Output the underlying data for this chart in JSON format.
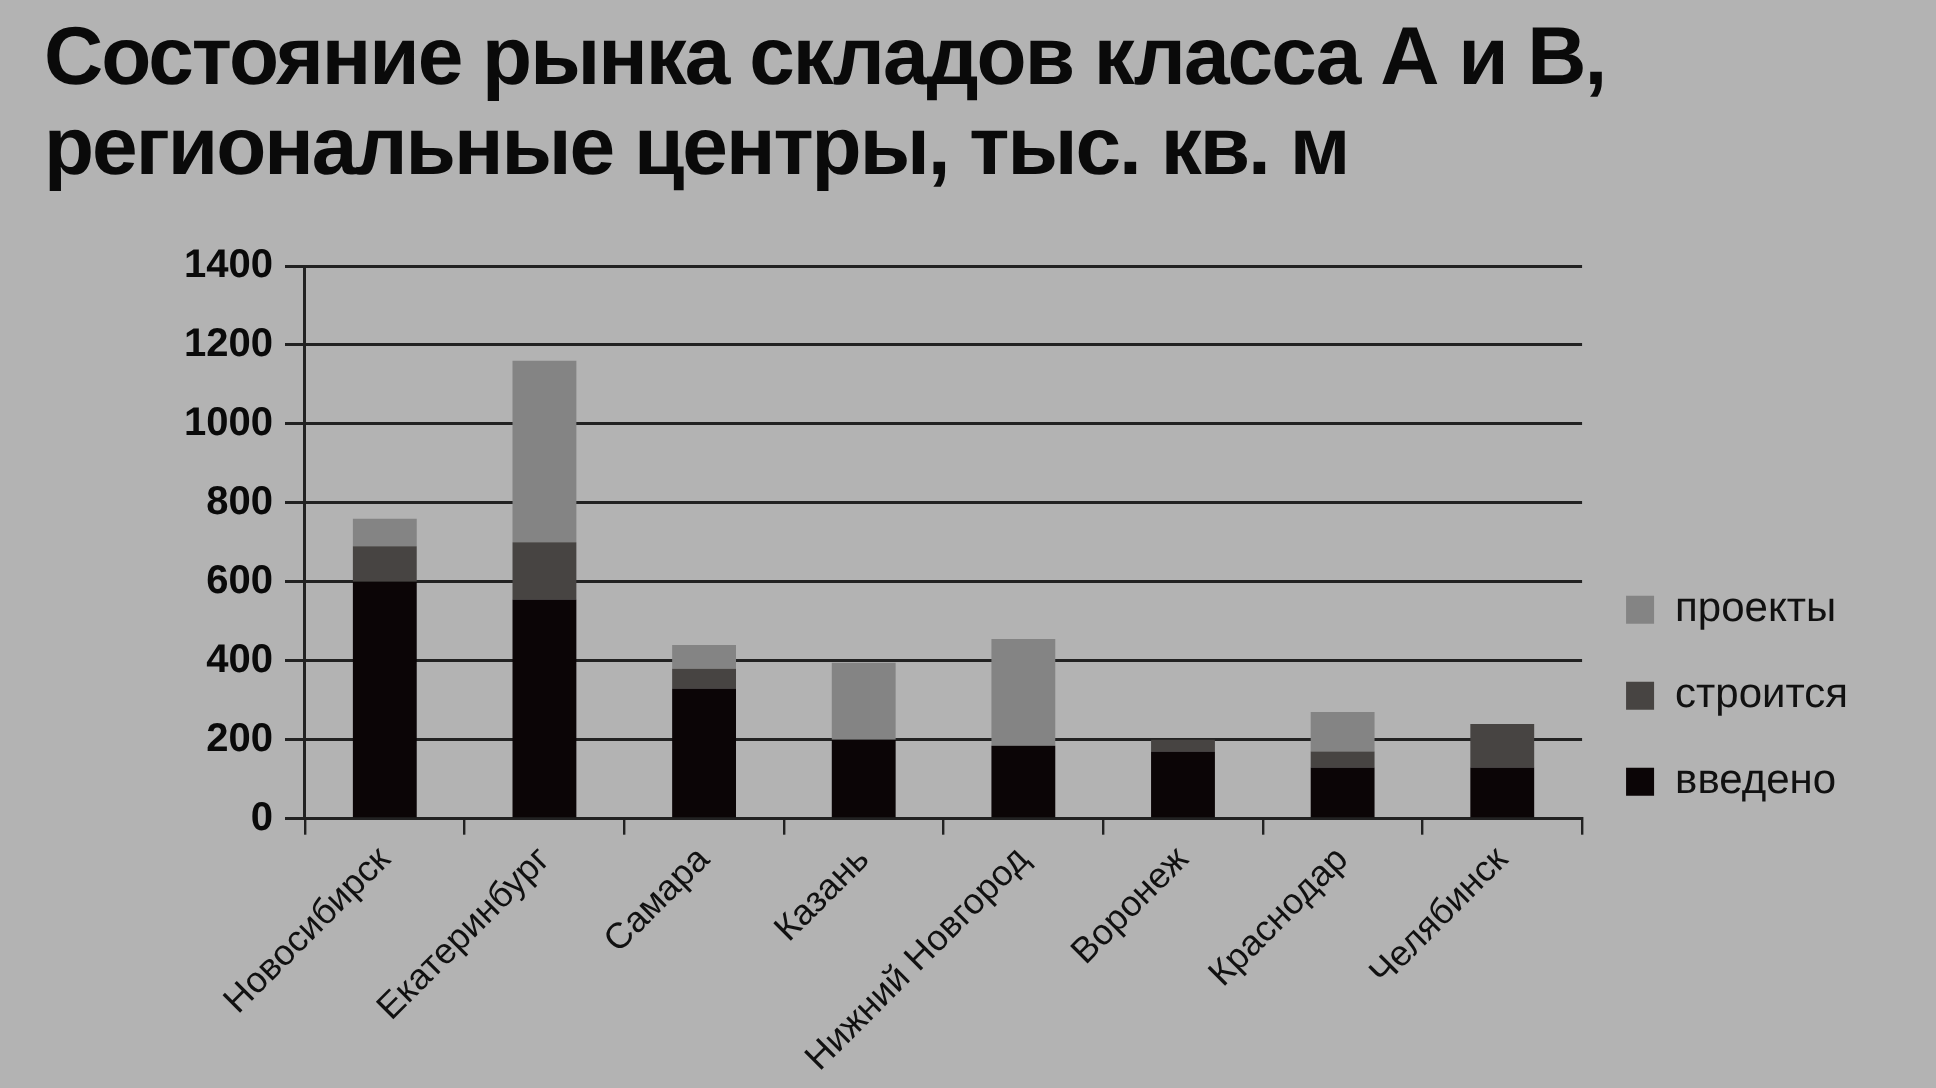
{
  "chart_data": {
    "type": "bar",
    "title": "Состояние рынка складов класса А и В, региональные центры, тыс. кв. м",
    "categories": [
      "Новосибирск",
      "Екатеринбург",
      "Самара",
      "Казань",
      "Нижний Новгород",
      "Воронеж",
      "Краснодар",
      "Челябинск"
    ],
    "series": [
      {
        "name": "введено",
        "color": "#0b0506",
        "values": [
          600,
          555,
          330,
          200,
          185,
          170,
          130,
          130
        ]
      },
      {
        "name": "строится",
        "color": "#474442",
        "values": [
          90,
          145,
          50,
          null,
          null,
          30,
          40,
          110
        ]
      },
      {
        "name": "проекты",
        "color": "#848484",
        "values": [
          70,
          460,
          60,
          195,
          270,
          null,
          100,
          null
        ]
      }
    ],
    "stacked": true,
    "ylim": [
      0,
      1400
    ],
    "yticks": [
      0,
      200,
      400,
      600,
      800,
      1000,
      1200,
      1400
    ],
    "grid": "y",
    "legend": "right"
  }
}
